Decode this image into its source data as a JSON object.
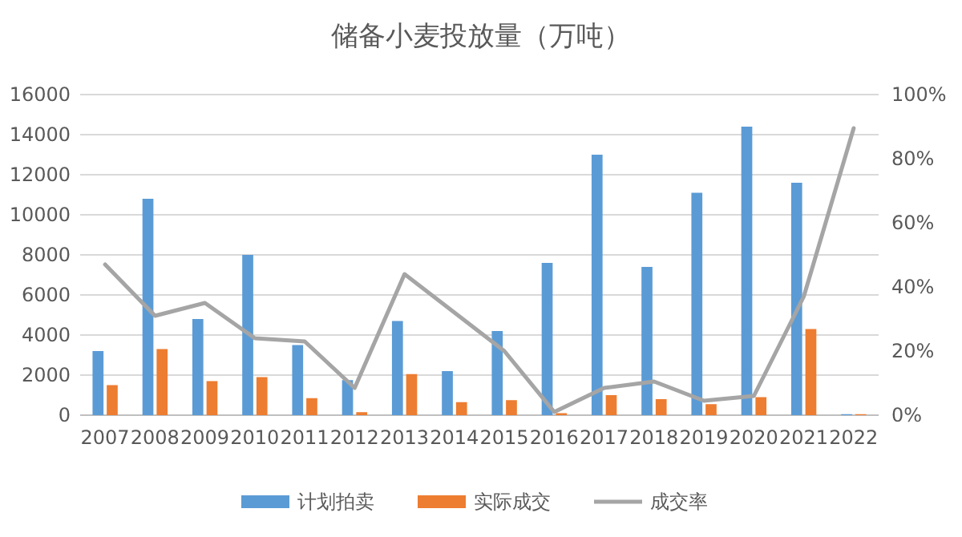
{
  "chart_data": {
    "type": "bar",
    "title": "储备小麦投放量（万吨）",
    "categories": [
      "2007",
      "2008",
      "2009",
      "2010",
      "2011",
      "2012",
      "2013",
      "2014",
      "2015",
      "2016",
      "2017",
      "2018",
      "2019",
      "2020",
      "2021",
      "2022"
    ],
    "series": [
      {
        "name": "计划拍卖",
        "color": "#5b9bd5",
        "values": [
          3200,
          10800,
          4800,
          8000,
          3500,
          1750,
          4700,
          2200,
          4200,
          7600,
          13000,
          7400,
          11100,
          14400,
          11600,
          50
        ]
      },
      {
        "name": "实际成交",
        "color": "#ed7d31",
        "values": [
          1500,
          3300,
          1700,
          1900,
          850,
          150,
          2050,
          650,
          750,
          100,
          1000,
          800,
          550,
          900,
          4300,
          50
        ]
      },
      {
        "name": "成交率",
        "type": "line",
        "axis": "y2",
        "color": "#a5a5a5",
        "values": [
          47,
          31,
          35,
          24,
          23,
          8.5,
          44,
          32,
          20,
          1,
          8.5,
          10.5,
          4.5,
          6,
          37,
          89.5
        ]
      }
    ],
    "ylim": [
      0,
      16000
    ],
    "yticks": [
      0,
      2000,
      4000,
      6000,
      8000,
      10000,
      12000,
      14000,
      16000
    ],
    "y2lim": [
      0,
      100
    ],
    "y2ticks": [
      {
        "value": 0,
        "label": "0%"
      },
      {
        "value": 20,
        "label": "20%"
      },
      {
        "value": 40,
        "label": "40%"
      },
      {
        "value": 60,
        "label": "60%"
      },
      {
        "value": 80,
        "label": "80%"
      },
      {
        "value": 100,
        "label": "100%"
      }
    ],
    "grid": "y",
    "legend": "bottom",
    "marker": "none"
  }
}
